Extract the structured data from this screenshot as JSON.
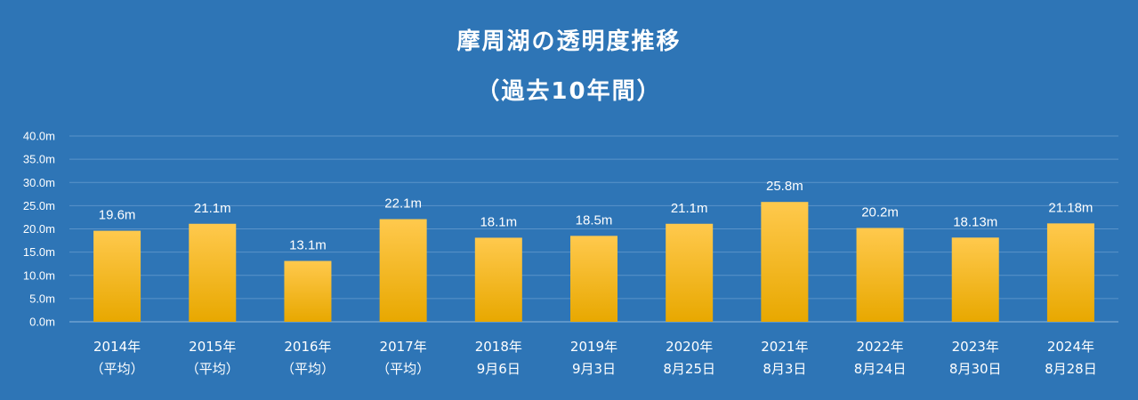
{
  "chart_data": {
    "type": "bar",
    "title": "摩周湖の透明度推移",
    "subtitle": "（過去10年間）",
    "categories": [
      [
        "2014年",
        "（平均）"
      ],
      [
        "2015年",
        "（平均）"
      ],
      [
        "2016年",
        "（平均）"
      ],
      [
        "2017年",
        "（平均）"
      ],
      [
        "2018年",
        "9月6日"
      ],
      [
        "2019年",
        "9月3日"
      ],
      [
        "2020年",
        "8月25日"
      ],
      [
        "2021年",
        "8月3日"
      ],
      [
        "2022年",
        "8月24日"
      ],
      [
        "2023年",
        "8月30日"
      ],
      [
        "2024年",
        "8月28日"
      ]
    ],
    "values": [
      19.6,
      21.1,
      13.1,
      22.1,
      18.1,
      18.5,
      21.1,
      25.8,
      20.2,
      18.13,
      21.18
    ],
    "value_labels": [
      "19.6m",
      "21.1m",
      "13.1m",
      "22.1m",
      "18.1m",
      "18.5m",
      "21.1m",
      "25.8m",
      "20.2m",
      "18.13m",
      "21.18m"
    ],
    "yticks": [
      "0.0m",
      "5.0m",
      "10.0m",
      "15.0m",
      "20.0m",
      "25.0m",
      "30.0m",
      "35.0m",
      "40.0m"
    ],
    "ylim": [
      0,
      40
    ],
    "grid": true,
    "colors": {
      "background": "#2e75b6",
      "bar_top": "#ffc94d",
      "bar_bottom": "#e8a800",
      "grid": "#5a93c9",
      "text": "#ffffff"
    }
  }
}
